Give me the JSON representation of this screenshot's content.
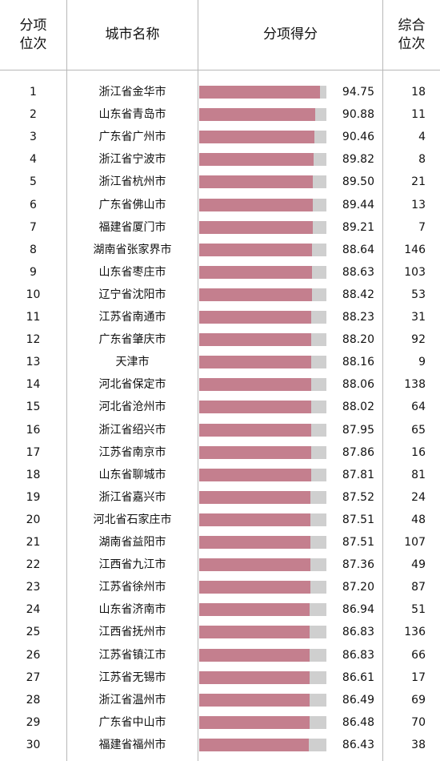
{
  "header": {
    "rank_line1": "分项",
    "rank_line2": "位次",
    "city": "城市名称",
    "score": "分项得分",
    "overall_line1": "综合",
    "overall_line2": "位次"
  },
  "colors": {
    "bar": "#c47f8e",
    "bar_track": "#cfcfcf",
    "grid": "#b8b8b8"
  },
  "chart_data": {
    "type": "bar",
    "orientation": "horizontal",
    "xlim": [
      0,
      100
    ],
    "grid": true,
    "categories": [
      "浙江省金华市",
      "山东省青岛市",
      "广东省广州市",
      "浙江省宁波市",
      "浙江省杭州市",
      "广东省佛山市",
      "福建省厦门市",
      "湖南省张家界市",
      "山东省枣庄市",
      "辽宁省沈阳市",
      "江苏省南通市",
      "广东省肇庆市",
      "天津市",
      "河北省保定市",
      "河北省沧州市",
      "浙江省绍兴市",
      "江苏省南京市",
      "山东省聊城市",
      "浙江省嘉兴市",
      "河北省石家庄市",
      "湖南省益阳市",
      "江西省九江市",
      "江苏省徐州市",
      "山东省济南市",
      "江西省抚州市",
      "江苏省镇江市",
      "江苏省无锡市",
      "浙江省温州市",
      "广东省中山市",
      "福建省福州市"
    ],
    "values": [
      94.75,
      90.88,
      90.46,
      89.82,
      89.5,
      89.44,
      89.21,
      88.64,
      88.63,
      88.42,
      88.23,
      88.2,
      88.16,
      88.06,
      88.02,
      87.95,
      87.86,
      87.81,
      87.52,
      87.51,
      87.51,
      87.36,
      87.2,
      86.94,
      86.83,
      86.83,
      86.61,
      86.49,
      86.48,
      86.43
    ]
  },
  "rows": [
    {
      "rank": "1",
      "city": "浙江省金华市",
      "score": "94.75",
      "overall": "18"
    },
    {
      "rank": "2",
      "city": "山东省青岛市",
      "score": "90.88",
      "overall": "11"
    },
    {
      "rank": "3",
      "city": "广东省广州市",
      "score": "90.46",
      "overall": "4"
    },
    {
      "rank": "4",
      "city": "浙江省宁波市",
      "score": "89.82",
      "overall": "8"
    },
    {
      "rank": "5",
      "city": "浙江省杭州市",
      "score": "89.50",
      "overall": "21"
    },
    {
      "rank": "6",
      "city": "广东省佛山市",
      "score": "89.44",
      "overall": "13"
    },
    {
      "rank": "7",
      "city": "福建省厦门市",
      "score": "89.21",
      "overall": "7"
    },
    {
      "rank": "8",
      "city": "湖南省张家界市",
      "score": "88.64",
      "overall": "146"
    },
    {
      "rank": "9",
      "city": "山东省枣庄市",
      "score": "88.63",
      "overall": "103"
    },
    {
      "rank": "10",
      "city": "辽宁省沈阳市",
      "score": "88.42",
      "overall": "53"
    },
    {
      "rank": "11",
      "city": "江苏省南通市",
      "score": "88.23",
      "overall": "31"
    },
    {
      "rank": "12",
      "city": "广东省肇庆市",
      "score": "88.20",
      "overall": "92"
    },
    {
      "rank": "13",
      "city": "天津市",
      "score": "88.16",
      "overall": "9"
    },
    {
      "rank": "14",
      "city": "河北省保定市",
      "score": "88.06",
      "overall": "138"
    },
    {
      "rank": "15",
      "city": "河北省沧州市",
      "score": "88.02",
      "overall": "64"
    },
    {
      "rank": "16",
      "city": "浙江省绍兴市",
      "score": "87.95",
      "overall": "65"
    },
    {
      "rank": "17",
      "city": "江苏省南京市",
      "score": "87.86",
      "overall": "16"
    },
    {
      "rank": "18",
      "city": "山东省聊城市",
      "score": "87.81",
      "overall": "81"
    },
    {
      "rank": "19",
      "city": "浙江省嘉兴市",
      "score": "87.52",
      "overall": "24"
    },
    {
      "rank": "20",
      "city": "河北省石家庄市",
      "score": "87.51",
      "overall": "48"
    },
    {
      "rank": "21",
      "city": "湖南省益阳市",
      "score": "87.51",
      "overall": "107"
    },
    {
      "rank": "22",
      "city": "江西省九江市",
      "score": "87.36",
      "overall": "49"
    },
    {
      "rank": "23",
      "city": "江苏省徐州市",
      "score": "87.20",
      "overall": "87"
    },
    {
      "rank": "24",
      "city": "山东省济南市",
      "score": "86.94",
      "overall": "51"
    },
    {
      "rank": "25",
      "city": "江西省抚州市",
      "score": "86.83",
      "overall": "136"
    },
    {
      "rank": "26",
      "city": "江苏省镇江市",
      "score": "86.83",
      "overall": "66"
    },
    {
      "rank": "27",
      "city": "江苏省无锡市",
      "score": "86.61",
      "overall": "17"
    },
    {
      "rank": "28",
      "city": "浙江省温州市",
      "score": "86.49",
      "overall": "69"
    },
    {
      "rank": "29",
      "city": "广东省中山市",
      "score": "86.48",
      "overall": "70"
    },
    {
      "rank": "30",
      "city": "福建省福州市",
      "score": "86.43",
      "overall": "38"
    }
  ]
}
